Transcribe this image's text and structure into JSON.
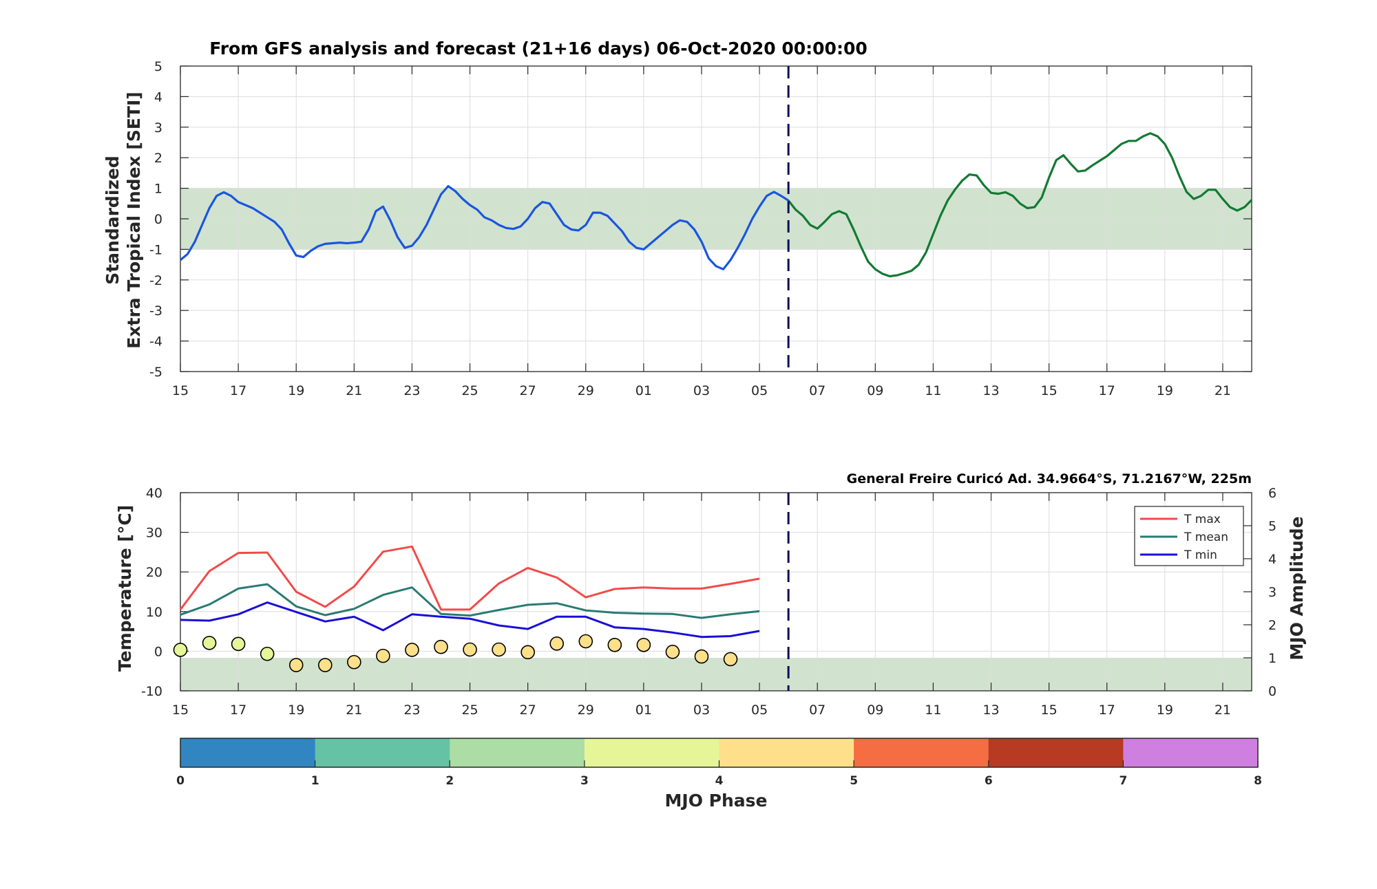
{
  "chart_data": [
    {
      "type": "line",
      "title": "From GFS analysis and forecast (21+16 days) 06-Oct-2020 00:00:00",
      "ylabel_line1": "Standardized",
      "ylabel_line2": "Extra Tropical Index [SETI]",
      "ylim": [
        -5,
        5
      ],
      "yticks": [
        "5",
        "4",
        "3",
        "2",
        "1",
        "0",
        "-1",
        "-2",
        "-3",
        "-4",
        "-5"
      ],
      "xlim": [
        0,
        37
      ],
      "xticks": [
        "15",
        "17",
        "19",
        "21",
        "23",
        "25",
        "27",
        "29",
        "01",
        "03",
        "05",
        "07",
        "09",
        "11",
        "13",
        "15",
        "17",
        "19",
        "21"
      ],
      "band": [
        -1,
        1
      ],
      "band_color": "#d1e3cf",
      "forecast_start": 21,
      "grid": true,
      "series": [
        {
          "color": "#1a55e0",
          "x": [
            0,
            0.25,
            0.5,
            0.75,
            1,
            1.25,
            1.5,
            1.75,
            2,
            2.25,
            2.5,
            2.75,
            3,
            3.25,
            3.5,
            3.75,
            4,
            4.25,
            4.5,
            4.75,
            5,
            5.25,
            5.5,
            5.75,
            6,
            6.25,
            6.5,
            6.75,
            7,
            7.25,
            7.5,
            7.75,
            8,
            8.25,
            8.5,
            8.75,
            9,
            9.25,
            9.5,
            9.75,
            10,
            10.25,
            10.5,
            10.75,
            11,
            11.25,
            11.5,
            11.75,
            12,
            12.25,
            12.5,
            12.75,
            13,
            13.25,
            13.5,
            13.75,
            14,
            14.25,
            14.5,
            14.75,
            15,
            15.25,
            15.5,
            15.75,
            16,
            16.25,
            16.5,
            16.75,
            17,
            17.25,
            17.5,
            17.75,
            18,
            18.25,
            18.5,
            18.75,
            19,
            19.25,
            19.5,
            19.75,
            20,
            20.25,
            20.5,
            20.75,
            21
          ],
          "y": [
            -1.35,
            -1.15,
            -0.75,
            -0.2,
            0.35,
            0.75,
            0.87,
            0.75,
            0.55,
            0.45,
            0.35,
            0.2,
            0.05,
            -0.1,
            -0.35,
            -0.8,
            -1.2,
            -1.25,
            -1.05,
            -0.9,
            -0.82,
            -0.8,
            -0.78,
            -0.8,
            -0.78,
            -0.75,
            -0.35,
            0.25,
            0.4,
            -0.05,
            -0.6,
            -0.95,
            -0.88,
            -0.6,
            -0.2,
            0.3,
            0.8,
            1.07,
            0.9,
            0.65,
            0.45,
            0.3,
            0.05,
            -0.05,
            -0.2,
            -0.3,
            -0.33,
            -0.25,
            0.0,
            0.35,
            0.55,
            0.5,
            0.15,
            -0.2,
            -0.35,
            -0.38,
            -0.2,
            0.2,
            0.2,
            0.1,
            -0.15,
            -0.4,
            -0.75,
            -0.95,
            -1.0,
            -0.8,
            -0.6,
            -0.4,
            -0.2,
            -0.05,
            -0.1,
            -0.35,
            -0.75,
            -1.3,
            -1.55,
            -1.65,
            -1.35,
            -0.95,
            -0.5,
            0.0,
            0.4,
            0.75,
            0.88,
            0.75,
            0.6
          ]
        },
        {
          "color": "#127a33",
          "x": [
            21,
            21.25,
            21.5,
            21.75,
            22,
            22.25,
            22.5,
            22.75,
            23,
            23.25,
            23.5,
            23.75,
            24,
            24.25,
            24.5,
            24.75,
            25,
            25.25,
            25.5,
            25.75,
            26,
            26.25,
            26.5,
            26.75,
            27,
            27.25,
            27.5,
            27.75,
            28,
            28.25,
            28.5,
            28.75,
            29,
            29.25,
            29.5,
            29.75,
            30,
            30.25,
            30.5,
            30.75,
            31,
            31.25,
            31.5,
            31.75,
            32,
            32.25,
            32.5,
            32.75,
            33,
            33.25,
            33.5,
            33.75,
            34,
            34.25,
            34.5,
            34.75,
            35,
            35.25,
            35.5,
            35.75,
            36,
            36.25,
            36.5,
            36.75,
            37
          ],
          "y": [
            0.6,
            0.3,
            0.1,
            -0.2,
            -0.32,
            -0.1,
            0.15,
            0.25,
            0.15,
            -0.35,
            -0.9,
            -1.4,
            -1.65,
            -1.8,
            -1.88,
            -1.85,
            -1.78,
            -1.7,
            -1.5,
            -1.1,
            -0.5,
            0.1,
            0.6,
            0.95,
            1.25,
            1.45,
            1.42,
            1.1,
            0.85,
            0.82,
            0.87,
            0.75,
            0.5,
            0.35,
            0.38,
            0.7,
            1.35,
            1.92,
            2.08,
            1.8,
            1.55,
            1.58,
            1.75,
            1.9,
            2.05,
            2.25,
            2.45,
            2.55,
            2.55,
            2.7,
            2.8,
            2.7,
            2.45,
            2.0,
            1.4,
            0.88,
            0.65,
            0.75,
            0.95,
            0.95,
            0.65,
            0.38,
            0.27,
            0.38,
            0.62
          ]
        }
      ]
    },
    {
      "type": "line",
      "station_label": "General Freire Curicó Ad. 34.9664°S, 71.2167°W, 225m",
      "ylabel": "Temperature [°C]",
      "ylabel_right": "MJO Amplitude",
      "ylim": [
        -10,
        40
      ],
      "yticks": [
        "40",
        "30",
        "20",
        "10",
        "0",
        "-10"
      ],
      "ylim_right": [
        0,
        6
      ],
      "yticks_right": [
        "6",
        "5",
        "4",
        "3",
        "2",
        "1",
        "0"
      ],
      "xlim": [
        0,
        37
      ],
      "xticks": [
        "15",
        "17",
        "19",
        "21",
        "23",
        "25",
        "27",
        "29",
        "01",
        "03",
        "05",
        "07",
        "09",
        "11",
        "13",
        "15",
        "17",
        "19",
        "21"
      ],
      "band_right": [
        0,
        1
      ],
      "band_color": "#d1e3cf",
      "forecast_start": 21,
      "grid": true,
      "legend_position": "top-right",
      "series": [
        {
          "name": "T max",
          "color": "#f24a4a",
          "x": [
            0,
            1,
            2,
            3,
            4,
            5,
            6,
            7,
            8,
            9,
            10,
            11,
            12,
            13,
            14,
            15,
            16,
            17,
            18,
            19,
            20
          ],
          "y": [
            10.5,
            20.2,
            24.8,
            24.9,
            15,
            11.2,
            16.3,
            25.1,
            26.4,
            10.5,
            10.5,
            17.1,
            21,
            18.6,
            13.6,
            15.7,
            16.1,
            15.8,
            15.8,
            17,
            18.3
          ]
        },
        {
          "name": "T mean",
          "color": "#2a7a73",
          "x": [
            0,
            1,
            2,
            3,
            4,
            5,
            6,
            7,
            8,
            9,
            10,
            11,
            12,
            13,
            14,
            15,
            16,
            17,
            18,
            19,
            20
          ],
          "y": [
            9.2,
            11.8,
            15.8,
            16.9,
            11.3,
            9.1,
            10.7,
            14.2,
            16.1,
            9.4,
            9,
            10.4,
            11.7,
            12.1,
            10.3,
            9.7,
            9.5,
            9.4,
            8.4,
            9.3,
            10.1
          ]
        },
        {
          "name": "T min",
          "color": "#1a0ed6",
          "x": [
            0,
            1,
            2,
            3,
            4,
            5,
            6,
            7,
            8,
            9,
            10,
            11,
            12,
            13,
            14,
            15,
            16,
            17,
            18,
            19,
            20
          ],
          "y": [
            7.9,
            7.7,
            9.3,
            12.3,
            9.9,
            7.5,
            8.7,
            5.3,
            9.3,
            8.7,
            8.2,
            6.5,
            5.6,
            8.7,
            8.7,
            6,
            5.6,
            4.7,
            3.6,
            3.8,
            5.1
          ]
        }
      ],
      "mjo_points": {
        "x": [
          0,
          1,
          2,
          3,
          4,
          5,
          6,
          7,
          8,
          9,
          10,
          11,
          12,
          13,
          14,
          15,
          16,
          17,
          18,
          19
        ],
        "amplitude": [
          1.24,
          1.45,
          1.42,
          1.12,
          0.78,
          0.78,
          0.87,
          1.06,
          1.24,
          1.33,
          1.25,
          1.25,
          1.17,
          1.43,
          1.5,
          1.39,
          1.39,
          1.18,
          1.04,
          0.96
        ],
        "phase": [
          3.5,
          3.3,
          3.3,
          3.5,
          4.5,
          4.5,
          4.5,
          4.5,
          4.5,
          4.5,
          4.5,
          4.5,
          4.5,
          4.5,
          4.5,
          4.5,
          4.5,
          4.5,
          4.5,
          4.5
        ]
      }
    },
    {
      "type": "colorbar",
      "label": "MJO Phase",
      "ticks": [
        "0",
        "1",
        "2",
        "3",
        "4",
        "5",
        "6",
        "7",
        "8"
      ],
      "colors": [
        "#3186c1",
        "#66c2a5",
        "#abdda4",
        "#e6f598",
        "#fee08b",
        "#f46d43",
        "#b73a22",
        "#ce7fe0"
      ]
    }
  ]
}
